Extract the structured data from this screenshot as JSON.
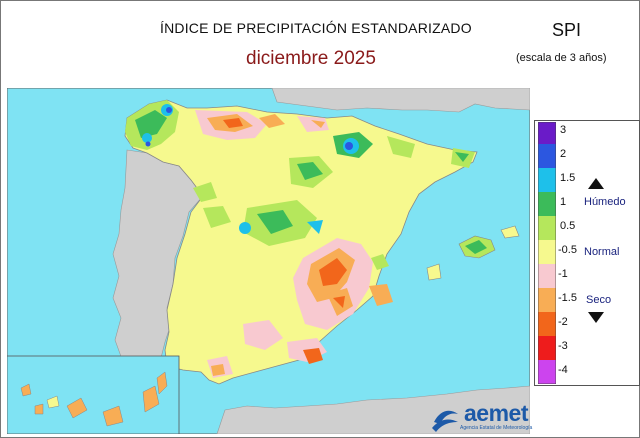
{
  "header": {
    "title": "ÍNDICE DE PRECIPITACIÓN ESTANDARIZADO",
    "subtitle": "diciembre  2025",
    "index_name": "SPI",
    "scale_note": "(escala de 3 años)"
  },
  "legend": {
    "ticks": [
      "3",
      "2",
      "1.5",
      "1",
      "0.5",
      "-0.5",
      "-1",
      "-1.5",
      "-2",
      "-3",
      "-4"
    ],
    "colors": [
      "#6a1bc8",
      "#2c57e0",
      "#1ec0ea",
      "#3cbb5a",
      "#b5e75c",
      "#f6f98e",
      "#f8c9d0",
      "#f8ad55",
      "#f2661b",
      "#ee1c1c",
      "#cc44ee"
    ],
    "humid_label": "Húmedo",
    "normal_label": "Normal",
    "dry_label": "Seco"
  },
  "map": {
    "sea_color": "#7fe3f3",
    "neighbour_land_color": "#cfcfcf",
    "dominant_class_color": "#f6f98e"
  },
  "logo": {
    "name": "aemet",
    "tagline": "Agencia Estatal de Meteorología"
  }
}
